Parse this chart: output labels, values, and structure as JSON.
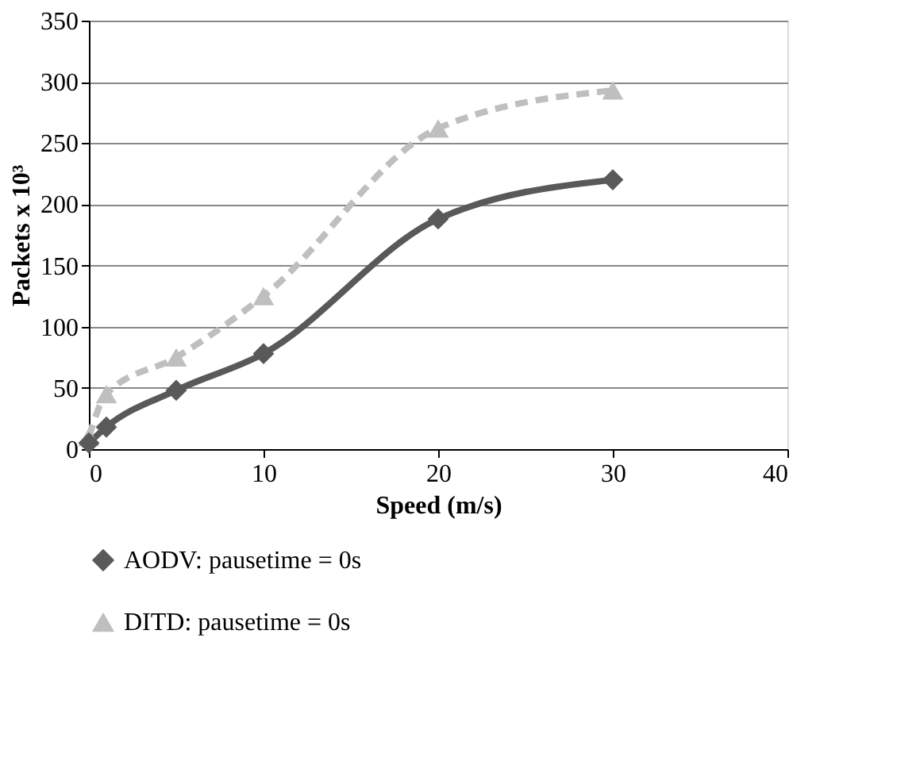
{
  "chart_data": {
    "type": "line",
    "xlabel": "Speed (m/s)",
    "ylabel": "Packets  x 10³",
    "xlim": [
      0,
      40
    ],
    "xticks": [
      0,
      10,
      20,
      30,
      40
    ],
    "ylim": [
      0,
      350
    ],
    "yticks": [
      0,
      50,
      100,
      150,
      200,
      250,
      300,
      350
    ],
    "grid": "y",
    "legend": "bottom",
    "series": [
      {
        "name": "AODV: pausetime = 0s",
        "color": "#595959",
        "marker": "diamond",
        "line_style": "solid",
        "x": [
          0,
          1,
          5,
          10,
          20,
          30
        ],
        "values": [
          5,
          18,
          48,
          78,
          188,
          220
        ]
      },
      {
        "name": "DITD: pausetime = 0s",
        "color": "#bfbfbf",
        "marker": "triangle",
        "line_style": "dashed",
        "x": [
          0,
          1,
          5,
          10,
          20,
          30
        ],
        "values": [
          10,
          45,
          75,
          125,
          262,
          293
        ]
      }
    ]
  }
}
